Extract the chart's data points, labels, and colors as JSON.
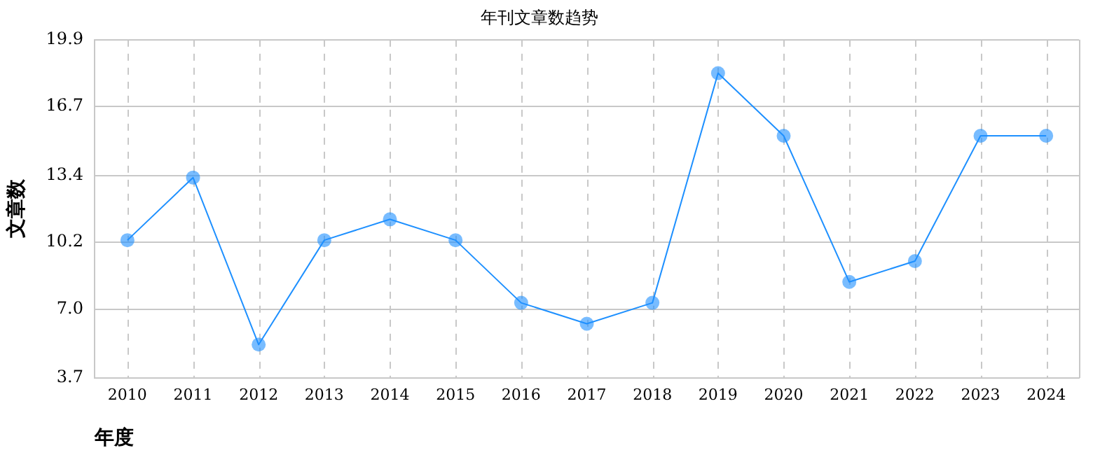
{
  "chart_data": {
    "type": "line",
    "title": "年刊文章数趋势",
    "xlabel": "年度",
    "ylabel": "文章数",
    "categories": [
      "2010",
      "2011",
      "2012",
      "2013",
      "2014",
      "2015",
      "2016",
      "2017",
      "2018",
      "2019",
      "2020",
      "2021",
      "2022",
      "2023",
      "2024"
    ],
    "series": [
      {
        "color": "#1e90ff",
        "values": [
          10.3,
          13.3,
          5.3,
          10.3,
          11.3,
          10.3,
          7.3,
          6.3,
          7.3,
          18.3,
          15.3,
          8.3,
          9.3,
          15.3,
          15.3
        ]
      }
    ],
    "ylim": [
      3.7,
      19.9
    ],
    "yticks": [
      3.7,
      {
        "value": 7,
        "label": "7.0"
      },
      10.2,
      13.4,
      16.7,
      19.9
    ],
    "grid": true,
    "marker": "circle",
    "line_style": "solid",
    "legend": false
  }
}
